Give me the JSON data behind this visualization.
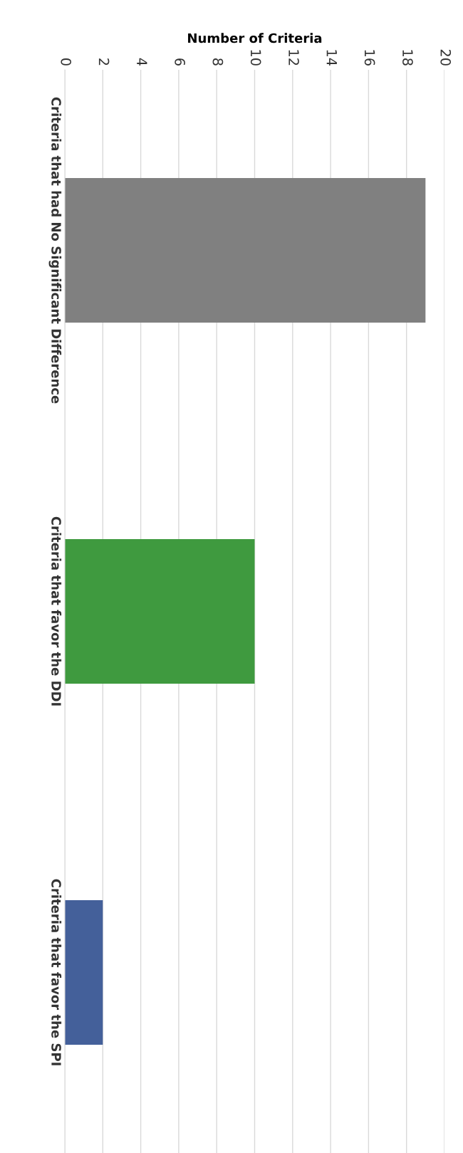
{
  "chart_data": {
    "type": "bar",
    "orientation": "horizontal",
    "xlabel": "Number of Criteria",
    "categories": [
      "Criteria that had No Significant Difference",
      "Criteria that favor the DDI",
      "Criteria that favor the SPI"
    ],
    "values": [
      19,
      10,
      2
    ],
    "colors": [
      "#808080",
      "#3f9a3f",
      "#44609a"
    ],
    "xlim": [
      0,
      20
    ],
    "xticks": [
      0,
      2,
      4,
      6,
      8,
      10,
      12,
      14,
      16,
      18,
      20
    ],
    "grid": "x"
  }
}
